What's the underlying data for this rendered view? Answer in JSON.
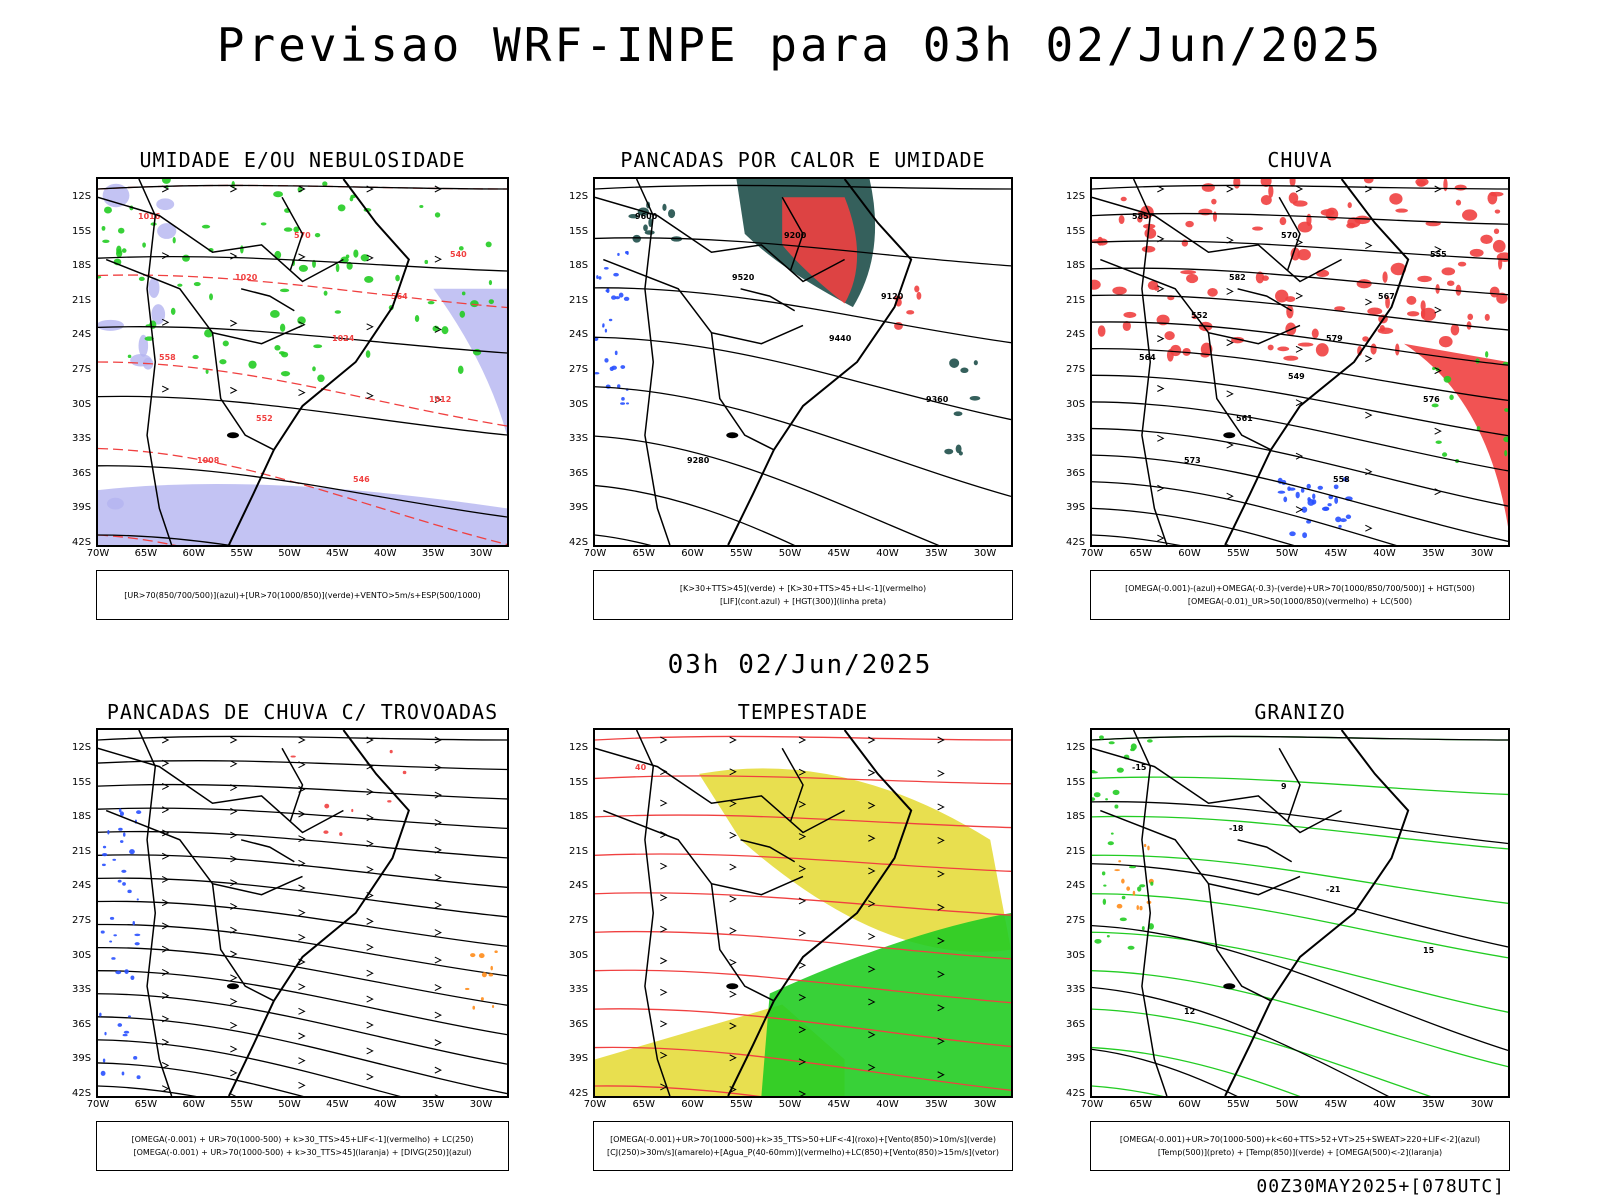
{
  "header": {
    "title": "Previsao WRF-INPE  para 03h 02/Jun/2025",
    "mid_title": "03h 02/Jun/2025",
    "footer": "00Z30MAY2025+[078UTC]"
  },
  "axes": {
    "lat_ticks": [
      "12S",
      "15S",
      "18S",
      "21S",
      "24S",
      "27S",
      "30S",
      "33S",
      "36S",
      "39S",
      "42S"
    ],
    "lon_ticks": [
      "70W",
      "65W",
      "60W",
      "55W",
      "50W",
      "45W",
      "40W",
      "35W",
      "30W"
    ]
  },
  "panels": [
    {
      "id": "umidade",
      "title": "UMIDADE E/OU NEBULOSIDADE",
      "legend": [
        "[UR>70(850/700/500)](azul)+[UR>70(1000/850)](verde)+VENTO>5m/s+ESP(500/1000)"
      ],
      "contour_labels": [
        "1016",
        "1020",
        "1024",
        "1012",
        "1008",
        "570",
        "564",
        "558",
        "552",
        "546",
        "540"
      ]
    },
    {
      "id": "pancadas-calor",
      "title": "PANCADAS POR CALOR E UMIDADE",
      "legend": [
        "[K>30+TTS>45](verde) + [K>30+TTS>45+LI<-1](vermelho)",
        "[LIF](cont.azul) + [HGT(300)](linha preta)"
      ],
      "contour_labels": [
        "9600",
        "9520",
        "9440",
        "9360",
        "9280",
        "9200",
        "9120"
      ]
    },
    {
      "id": "chuva",
      "title": "CHUVA",
      "legend": [
        "[OMEGA(-0.001)-(azul)+OMEGA(-0.3)-(verde)+UR>70(1000/850/700/500)] + HGT(500)",
        "[OMEGA(-0.01)_UR>50(1000/850)(vermelho) + LC(500)"
      ],
      "contour_labels": [
        "585",
        "582",
        "579",
        "576",
        "573",
        "570",
        "567",
        "564",
        "561",
        "558",
        "555",
        "552",
        "549"
      ]
    },
    {
      "id": "pancadas-trovoadas",
      "title": "PANCADAS DE CHUVA C/ TROVOADAS",
      "legend": [
        "[OMEGA(-0.001) + UR>70(1000-500) + k>30_TTS>45+LIF<-1](vermelho) + LC(250)",
        "[OMEGA(-0.001) + UR>70(1000-500) + k>30_TTS>45](laranja) + [DIVG(250)](azul)"
      ],
      "contour_labels": []
    },
    {
      "id": "tempestade",
      "title": "TEMPESTADE",
      "legend": [
        "[OMEGA(-0.001)+UR>70(1000-500)+k>35_TTS>50+LIF<-4](roxo)+[Vento(850)>10m/s](verde)",
        "[CJ(250)>30m/s](amarelo)+[Agua_P(40-60mm)](vermelho)+LC(850)+[Vento(850)>15m/s](vetor)"
      ],
      "contour_labels": [
        "40"
      ]
    },
    {
      "id": "granizo",
      "title": "GRANIZO",
      "legend": [
        "[OMEGA(-0.001)+UR>70(1000-500)+k<60+TTS>52+VT>25+SWEAT>220+LIF<-2](azul)",
        "[Temp(500)](preto) + [Temp(850)](verde) + [OMEGA(500)<-2](laranja)"
      ],
      "contour_labels": [
        "-15",
        "-18",
        "-21",
        "15",
        "12",
        "9"
      ]
    }
  ],
  "colors": {
    "blue_humidity": "#b4b4f0",
    "green": "#22cc22",
    "red": "#f04040",
    "teal": "#1f4f4a",
    "yellow": "#e6dc3c",
    "orange": "#ff8c1a",
    "blue": "#2850ff"
  }
}
